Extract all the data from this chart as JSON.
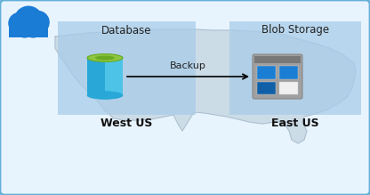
{
  "bg_outer": "#dce9f5",
  "bg_inner": "#e8f4fd",
  "border_color": "#62b0d8",
  "west_box_color": "#a8cce8",
  "east_box_color": "#a8cce8",
  "west_label": "West US",
  "east_label": "East US",
  "west_title": "Database",
  "east_title": "Blob Storage",
  "arrow_label": "Backup",
  "cloud_color": "#1b7cd6",
  "cylinder_body_light": "#4ec3e8",
  "cylinder_body_dark": "#29a8d8",
  "cylinder_top": "#8dc63f",
  "cylinder_top_dark": "#6aaa20",
  "storage_frame": "#909090",
  "storage_frame_top": "#707070",
  "storage_blue": "#1a7fd4",
  "storage_blue_dark": "#1060a8",
  "storage_white": "#f0f0f0",
  "map_fill": "#c8d8e4",
  "map_edge": "#aabccc",
  "title_fontsize": 8.5,
  "label_fontsize": 9,
  "arrow_fontsize": 8
}
